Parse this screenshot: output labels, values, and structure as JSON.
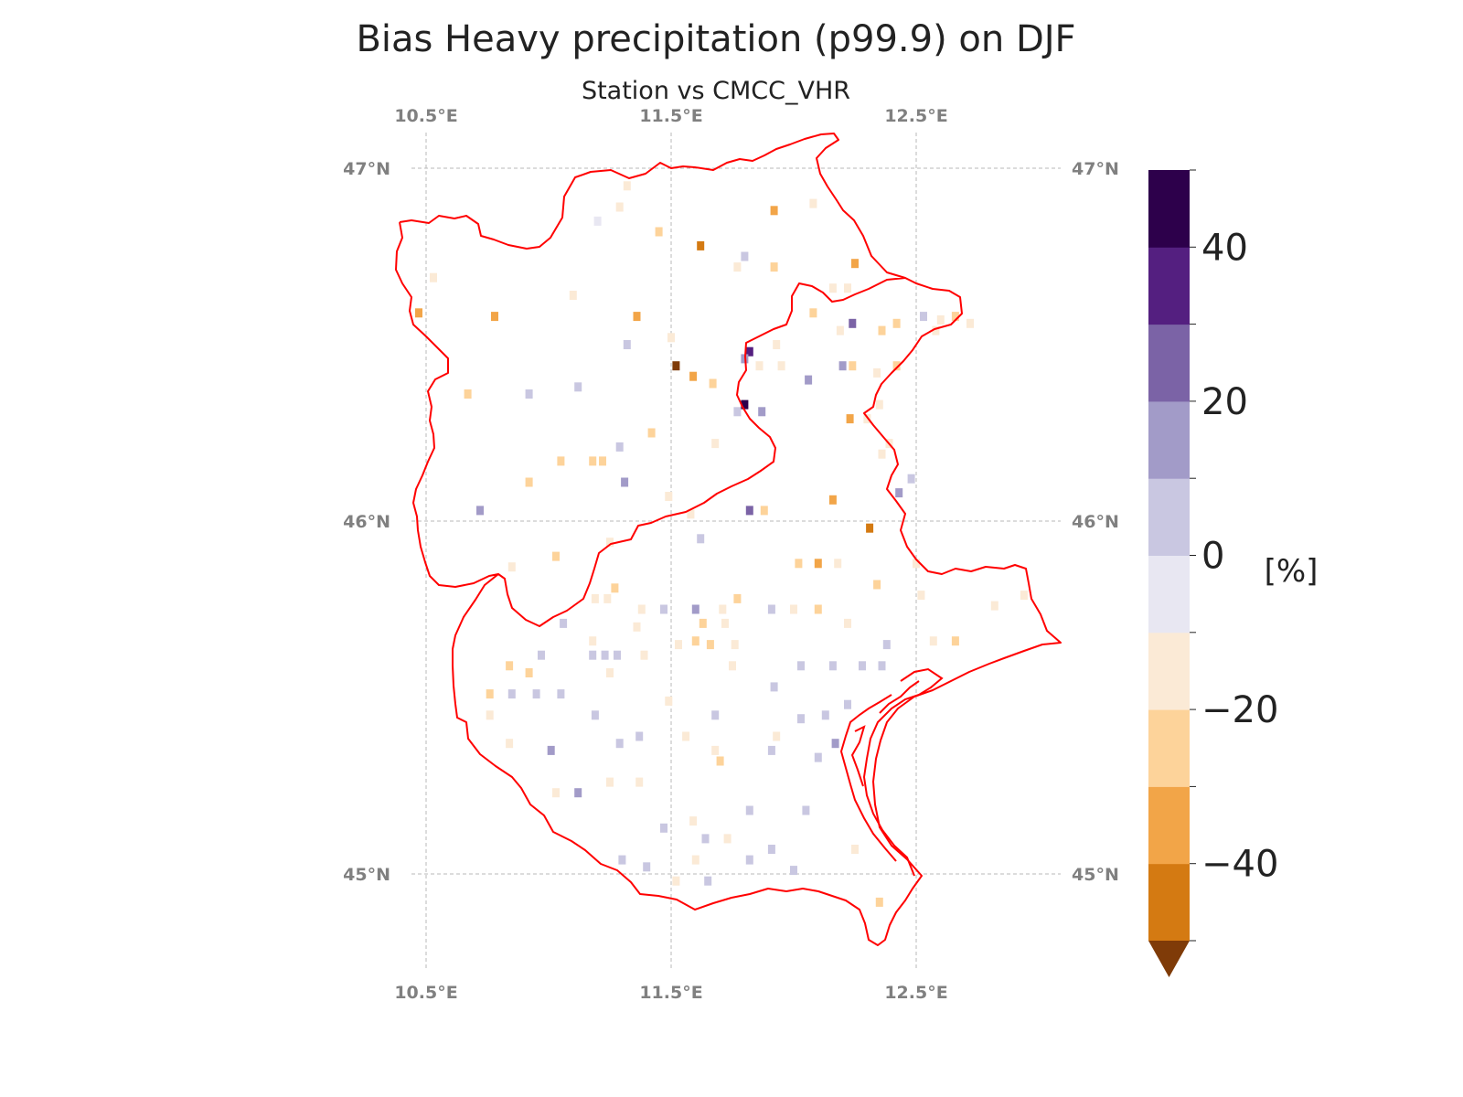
{
  "title": "Bias Heavy precipitation (p99.9) on DJF",
  "subtitle": "Station vs CMCC_VHR",
  "lon_ticks": [
    {
      "value": 10.5,
      "label": "10.5°E"
    },
    {
      "value": 11.5,
      "label": "11.5°E"
    },
    {
      "value": 12.5,
      "label": "12.5°E"
    }
  ],
  "lat_ticks": [
    {
      "value": 47,
      "label": "47°N"
    },
    {
      "value": 46,
      "label": "46°N"
    },
    {
      "value": 45,
      "label": "45°N"
    }
  ],
  "colorbar": {
    "unit_label": "[%]",
    "bounds": [
      -50,
      -40,
      -30,
      -20,
      -10,
      0,
      10,
      20,
      30,
      40,
      50
    ],
    "colors": [
      "#d47a12",
      "#f2a548",
      "#fdd39a",
      "#fbead6",
      "#e8e7f2",
      "#c9c7e1",
      "#a29bc8",
      "#7b63a6",
      "#541f80",
      "#2d004b"
    ],
    "under_color": "#7f3b08",
    "tick_labels": [
      {
        "value": 40,
        "label": "40"
      },
      {
        "value": 20,
        "label": "20"
      },
      {
        "value": 0,
        "label": "0"
      },
      {
        "value": -20,
        "label": "−20"
      },
      {
        "value": -40,
        "label": "−40"
      }
    ]
  },
  "chart_data": {
    "type": "heatmap",
    "title": "Bias Heavy precipitation (p99.9) on DJF",
    "subtitle": "Station vs CMCC_VHR",
    "xlabel": "",
    "ylabel": "",
    "lon_range": [
      10.4,
      13.0
    ],
    "lat_range": [
      44.8,
      47.1
    ],
    "grid": true,
    "outline_color": "#ff0000",
    "units": "%",
    "points": [
      {
        "lon": 11.29,
        "lat": 46.89,
        "v": -15
      },
      {
        "lon": 11.2,
        "lat": 46.85,
        "v": -10
      },
      {
        "lon": 11.32,
        "lat": 46.95,
        "v": -18
      },
      {
        "lon": 11.45,
        "lat": 46.82,
        "v": -30
      },
      {
        "lon": 11.62,
        "lat": 46.78,
        "v": -45
      },
      {
        "lon": 11.8,
        "lat": 46.75,
        "v": 2
      },
      {
        "lon": 11.92,
        "lat": 46.88,
        "v": -35
      },
      {
        "lon": 12.08,
        "lat": 46.9,
        "v": -12
      },
      {
        "lon": 12.25,
        "lat": 46.73,
        "v": -35
      },
      {
        "lon": 11.92,
        "lat": 46.72,
        "v": -30
      },
      {
        "lon": 11.77,
        "lat": 46.72,
        "v": -12
      },
      {
        "lon": 12.16,
        "lat": 46.66,
        "v": -15
      },
      {
        "lon": 12.22,
        "lat": 46.66,
        "v": -18
      },
      {
        "lon": 10.53,
        "lat": 46.69,
        "v": -12
      },
      {
        "lon": 10.47,
        "lat": 46.59,
        "v": -35
      },
      {
        "lon": 10.78,
        "lat": 46.58,
        "v": -35
      },
      {
        "lon": 11.36,
        "lat": 46.58,
        "v": -35
      },
      {
        "lon": 11.1,
        "lat": 46.64,
        "v": -15
      },
      {
        "lon": 11.5,
        "lat": 46.52,
        "v": -12
      },
      {
        "lon": 11.52,
        "lat": 46.44,
        "v": -55
      },
      {
        "lon": 11.59,
        "lat": 46.41,
        "v": -40
      },
      {
        "lon": 11.67,
        "lat": 46.39,
        "v": -25
      },
      {
        "lon": 11.82,
        "lat": 46.48,
        "v": 32
      },
      {
        "lon": 11.8,
        "lat": 46.33,
        "v": 45
      },
      {
        "lon": 11.77,
        "lat": 46.31,
        "v": 8
      },
      {
        "lon": 11.87,
        "lat": 46.31,
        "v": 14
      },
      {
        "lon": 11.86,
        "lat": 46.44,
        "v": -20
      },
      {
        "lon": 11.95,
        "lat": 46.44,
        "v": -15
      },
      {
        "lon": 12.06,
        "lat": 46.4,
        "v": 14
      },
      {
        "lon": 12.2,
        "lat": 46.44,
        "v": 12
      },
      {
        "lon": 12.24,
        "lat": 46.44,
        "v": -25
      },
      {
        "lon": 12.23,
        "lat": 46.29,
        "v": -40
      },
      {
        "lon": 12.3,
        "lat": 46.29,
        "v": -18
      },
      {
        "lon": 12.34,
        "lat": 46.42,
        "v": -15
      },
      {
        "lon": 12.35,
        "lat": 46.33,
        "v": -12
      },
      {
        "lon": 12.42,
        "lat": 46.44,
        "v": -25
      },
      {
        "lon": 12.39,
        "lat": 46.22,
        "v": -20
      },
      {
        "lon": 12.36,
        "lat": 46.19,
        "v": -15
      },
      {
        "lon": 12.48,
        "lat": 46.12,
        "v": 2
      },
      {
        "lon": 12.43,
        "lat": 46.08,
        "v": 15
      },
      {
        "lon": 12.08,
        "lat": 46.59,
        "v": -25
      },
      {
        "lon": 12.24,
        "lat": 46.56,
        "v": 28
      },
      {
        "lon": 12.36,
        "lat": 46.54,
        "v": -30
      },
      {
        "lon": 12.19,
        "lat": 46.54,
        "v": -20
      },
      {
        "lon": 12.42,
        "lat": 46.56,
        "v": -25
      },
      {
        "lon": 12.53,
        "lat": 46.58,
        "v": 3
      },
      {
        "lon": 12.58,
        "lat": 46.54,
        "v": -18
      },
      {
        "lon": 12.6,
        "lat": 46.57,
        "v": -20
      },
      {
        "lon": 12.66,
        "lat": 46.58,
        "v": -25
      },
      {
        "lon": 12.72,
        "lat": 46.56,
        "v": -20
      },
      {
        "lon": 11.93,
        "lat": 46.5,
        "v": -15
      },
      {
        "lon": 11.8,
        "lat": 46.46,
        "v": 10
      },
      {
        "lon": 11.68,
        "lat": 46.22,
        "v": -12
      },
      {
        "lon": 10.67,
        "lat": 46.36,
        "v": -25
      },
      {
        "lon": 10.92,
        "lat": 46.36,
        "v": 5
      },
      {
        "lon": 11.12,
        "lat": 46.38,
        "v": 5
      },
      {
        "lon": 11.42,
        "lat": 46.25,
        "v": -25
      },
      {
        "lon": 11.05,
        "lat": 46.17,
        "v": -25
      },
      {
        "lon": 11.18,
        "lat": 46.17,
        "v": -25
      },
      {
        "lon": 11.22,
        "lat": 46.17,
        "v": -30
      },
      {
        "lon": 11.29,
        "lat": 46.21,
        "v": 5
      },
      {
        "lon": 11.31,
        "lat": 46.11,
        "v": 18
      },
      {
        "lon": 11.32,
        "lat": 46.5,
        "v": 5
      },
      {
        "lon": 10.92,
        "lat": 46.11,
        "v": -25
      },
      {
        "lon": 10.72,
        "lat": 46.03,
        "v": 10
      },
      {
        "lon": 11.58,
        "lat": 46.02,
        "v": -12
      },
      {
        "lon": 11.82,
        "lat": 46.03,
        "v": 28
      },
      {
        "lon": 11.88,
        "lat": 46.03,
        "v": -25
      },
      {
        "lon": 12.16,
        "lat": 46.06,
        "v": -40
      },
      {
        "lon": 12.31,
        "lat": 45.98,
        "v": -45
      },
      {
        "lon": 11.49,
        "lat": 46.07,
        "v": -12
      },
      {
        "lon": 11.62,
        "lat": 45.95,
        "v": 8
      },
      {
        "lon": 12.02,
        "lat": 45.88,
        "v": -30
      },
      {
        "lon": 12.1,
        "lat": 45.88,
        "v": -40
      },
      {
        "lon": 12.18,
        "lat": 45.88,
        "v": -20
      },
      {
        "lon": 12.34,
        "lat": 45.82,
        "v": -25
      },
      {
        "lon": 12.5,
        "lat": 45.88,
        "v": -18
      },
      {
        "lon": 12.52,
        "lat": 45.79,
        "v": -15
      },
      {
        "lon": 12.82,
        "lat": 45.76,
        "v": -12
      },
      {
        "lon": 12.94,
        "lat": 45.79,
        "v": -15
      },
      {
        "lon": 12.66,
        "lat": 45.66,
        "v": -25
      },
      {
        "lon": 12.57,
        "lat": 45.66,
        "v": -15
      },
      {
        "lon": 10.85,
        "lat": 45.87,
        "v": -15
      },
      {
        "lon": 11.03,
        "lat": 45.9,
        "v": -25
      },
      {
        "lon": 11.25,
        "lat": 45.94,
        "v": -15
      },
      {
        "lon": 11.27,
        "lat": 45.81,
        "v": -25
      },
      {
        "lon": 11.24,
        "lat": 45.78,
        "v": -18
      },
      {
        "lon": 11.19,
        "lat": 45.78,
        "v": -12
      },
      {
        "lon": 11.38,
        "lat": 45.75,
        "v": -20
      },
      {
        "lon": 11.47,
        "lat": 45.75,
        "v": 3
      },
      {
        "lon": 11.6,
        "lat": 45.75,
        "v": 12
      },
      {
        "lon": 11.63,
        "lat": 45.71,
        "v": -25
      },
      {
        "lon": 11.72,
        "lat": 45.71,
        "v": -20
      },
      {
        "lon": 11.77,
        "lat": 45.78,
        "v": -25
      },
      {
        "lon": 11.71,
        "lat": 45.75,
        "v": -20
      },
      {
        "lon": 11.91,
        "lat": 45.75,
        "v": 3
      },
      {
        "lon": 12.0,
        "lat": 45.75,
        "v": -12
      },
      {
        "lon": 12.1,
        "lat": 45.75,
        "v": -25
      },
      {
        "lon": 12.22,
        "lat": 45.71,
        "v": -15
      },
      {
        "lon": 11.6,
        "lat": 45.66,
        "v": -25
      },
      {
        "lon": 11.53,
        "lat": 45.65,
        "v": -15
      },
      {
        "lon": 11.66,
        "lat": 45.65,
        "v": -25
      },
      {
        "lon": 11.76,
        "lat": 45.65,
        "v": -15
      },
      {
        "lon": 11.06,
        "lat": 45.71,
        "v": 3
      },
      {
        "lon": 11.18,
        "lat": 45.66,
        "v": -18
      },
      {
        "lon": 11.36,
        "lat": 45.7,
        "v": -15
      },
      {
        "lon": 11.39,
        "lat": 45.62,
        "v": -15
      },
      {
        "lon": 11.28,
        "lat": 45.62,
        "v": 3
      },
      {
        "lon": 11.18,
        "lat": 45.62,
        "v": 3
      },
      {
        "lon": 11.23,
        "lat": 45.62,
        "v": 3
      },
      {
        "lon": 11.25,
        "lat": 45.57,
        "v": -15
      },
      {
        "lon": 10.97,
        "lat": 45.62,
        "v": 3
      },
      {
        "lon": 10.84,
        "lat": 45.59,
        "v": -30
      },
      {
        "lon": 10.92,
        "lat": 45.57,
        "v": -25
      },
      {
        "lon": 10.76,
        "lat": 45.51,
        "v": -25
      },
      {
        "lon": 10.85,
        "lat": 45.51,
        "v": 3
      },
      {
        "lon": 10.95,
        "lat": 45.51,
        "v": 3
      },
      {
        "lon": 11.05,
        "lat": 45.51,
        "v": 3
      },
      {
        "lon": 10.76,
        "lat": 45.45,
        "v": -18
      },
      {
        "lon": 10.84,
        "lat": 45.37,
        "v": -15
      },
      {
        "lon": 11.01,
        "lat": 45.35,
        "v": 10
      },
      {
        "lon": 11.19,
        "lat": 45.45,
        "v": 5
      },
      {
        "lon": 11.29,
        "lat": 45.37,
        "v": 3
      },
      {
        "lon": 11.37,
        "lat": 45.39,
        "v": 3
      },
      {
        "lon": 11.49,
        "lat": 45.49,
        "v": -12
      },
      {
        "lon": 11.56,
        "lat": 45.39,
        "v": -15
      },
      {
        "lon": 11.68,
        "lat": 45.45,
        "v": 3
      },
      {
        "lon": 11.75,
        "lat": 45.59,
        "v": -15
      },
      {
        "lon": 11.68,
        "lat": 45.35,
        "v": -20
      },
      {
        "lon": 11.7,
        "lat": 45.32,
        "v": -30
      },
      {
        "lon": 11.92,
        "lat": 45.53,
        "v": 3
      },
      {
        "lon": 11.93,
        "lat": 45.39,
        "v": -12
      },
      {
        "lon": 11.91,
        "lat": 45.35,
        "v": 3
      },
      {
        "lon": 12.03,
        "lat": 45.59,
        "v": 3
      },
      {
        "lon": 12.16,
        "lat": 45.59,
        "v": 3
      },
      {
        "lon": 12.28,
        "lat": 45.59,
        "v": 3
      },
      {
        "lon": 12.36,
        "lat": 45.59,
        "v": 3
      },
      {
        "lon": 12.38,
        "lat": 45.65,
        "v": 3
      },
      {
        "lon": 12.13,
        "lat": 45.45,
        "v": 3
      },
      {
        "lon": 12.17,
        "lat": 45.37,
        "v": 12
      },
      {
        "lon": 12.1,
        "lat": 45.33,
        "v": 3
      },
      {
        "lon": 11.12,
        "lat": 45.23,
        "v": 10
      },
      {
        "lon": 11.03,
        "lat": 45.23,
        "v": -15
      },
      {
        "lon": 11.25,
        "lat": 45.26,
        "v": -15
      },
      {
        "lon": 11.37,
        "lat": 45.26,
        "v": -15
      },
      {
        "lon": 11.47,
        "lat": 45.13,
        "v": 3
      },
      {
        "lon": 11.59,
        "lat": 45.15,
        "v": -15
      },
      {
        "lon": 11.64,
        "lat": 45.1,
        "v": 8
      },
      {
        "lon": 11.73,
        "lat": 45.1,
        "v": -15
      },
      {
        "lon": 11.82,
        "lat": 45.18,
        "v": 3
      },
      {
        "lon": 11.91,
        "lat": 45.07,
        "v": 3
      },
      {
        "lon": 11.82,
        "lat": 45.04,
        "v": 3
      },
      {
        "lon": 11.6,
        "lat": 45.04,
        "v": -15
      },
      {
        "lon": 11.65,
        "lat": 44.98,
        "v": 8
      },
      {
        "lon": 11.52,
        "lat": 44.98,
        "v": -15
      },
      {
        "lon": 11.4,
        "lat": 45.02,
        "v": 3
      },
      {
        "lon": 11.3,
        "lat": 45.04,
        "v": 3
      },
      {
        "lon": 12.0,
        "lat": 45.01,
        "v": 3
      },
      {
        "lon": 12.05,
        "lat": 45.18,
        "v": 3
      },
      {
        "lon": 12.25,
        "lat": 45.07,
        "v": -15
      },
      {
        "lon": 12.35,
        "lat": 44.92,
        "v": -25
      },
      {
        "lon": 12.03,
        "lat": 45.44,
        "v": 3
      },
      {
        "lon": 12.22,
        "lat": 45.48,
        "v": 3
      }
    ]
  }
}
